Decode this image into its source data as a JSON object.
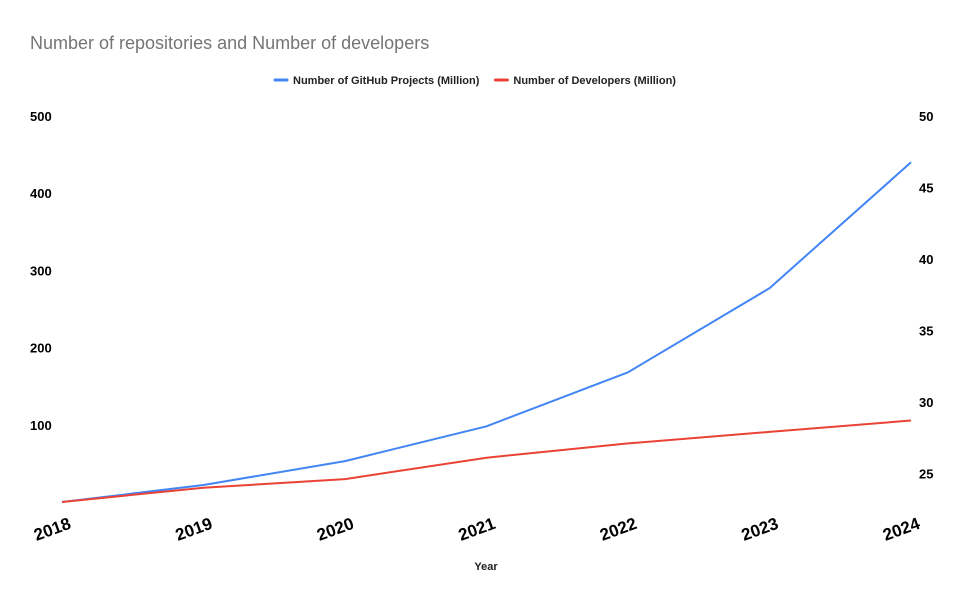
{
  "chart_data": {
    "type": "line",
    "title": "Number of repositories and Number of developers",
    "xlabel": "Year",
    "ylabel": "",
    "y2label": "",
    "categories": [
      "2018",
      "2019",
      "2020",
      "2021",
      "2022",
      "2023",
      "2024"
    ],
    "series": [
      {
        "name": "Number of GitHub Projects (Million)",
        "axis": "left",
        "color": "#4285f4",
        "values": [
          0,
          22,
          53,
          98,
          168,
          277,
          440
        ]
      },
      {
        "name": "Number of Developers (Million)",
        "axis": "right",
        "color": "#ea4335",
        "values": [
          23.0,
          24.0,
          24.6,
          26.1,
          27.1,
          27.9,
          28.7
        ]
      }
    ],
    "ylim": [
      0,
      500
    ],
    "y_ticks": [
      "100",
      "200",
      "300",
      "400",
      "500"
    ],
    "y2lim": [
      23,
      50
    ],
    "y2_ticks": [
      "25",
      "30",
      "35",
      "40",
      "45",
      "50"
    ],
    "grid": false,
    "legend_position": "top-center"
  }
}
